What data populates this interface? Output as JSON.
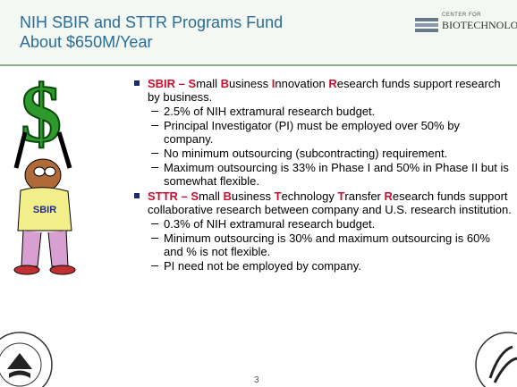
{
  "header": {
    "title_lines": [
      "NIH SBIR and STTR Programs Fund",
      "About $650M/Year"
    ],
    "logo": {
      "line1": "CENTER FOR",
      "line2": "BIOTECHNOLOGY"
    }
  },
  "illustration": {
    "shirt": "SBIR"
  },
  "bullets": [
    {
      "heading": [
        "SBIR – S",
        "mall ",
        "B",
        "usiness ",
        "I",
        "nnovation ",
        "R",
        "esearch funds support research by business."
      ],
      "items": [
        "2.5% of NIH extramural research budget.",
        "Principal Investigator (PI) must be employed over 50% by company.",
        "No minimum outsourcing (subcontracting) requirement.",
        "Maximum outsourcing is 33% in Phase I and 50% in Phase II but is somewhat flexible."
      ]
    },
    {
      "heading": [
        "STTR – S",
        "mall ",
        "B",
        "usiness ",
        "T",
        "echnology ",
        "T",
        "ransfer ",
        "R",
        "esearch funds support collaborative research between company and U.S. research institution."
      ],
      "items": [
        "0.3% of NIH extramural research budget.",
        "Minimum outsourcing is 30% and maximum outsourcing is 60% and % is not flexible.",
        "PI need not be employed by company."
      ]
    }
  ],
  "footer": {
    "page": "3"
  }
}
